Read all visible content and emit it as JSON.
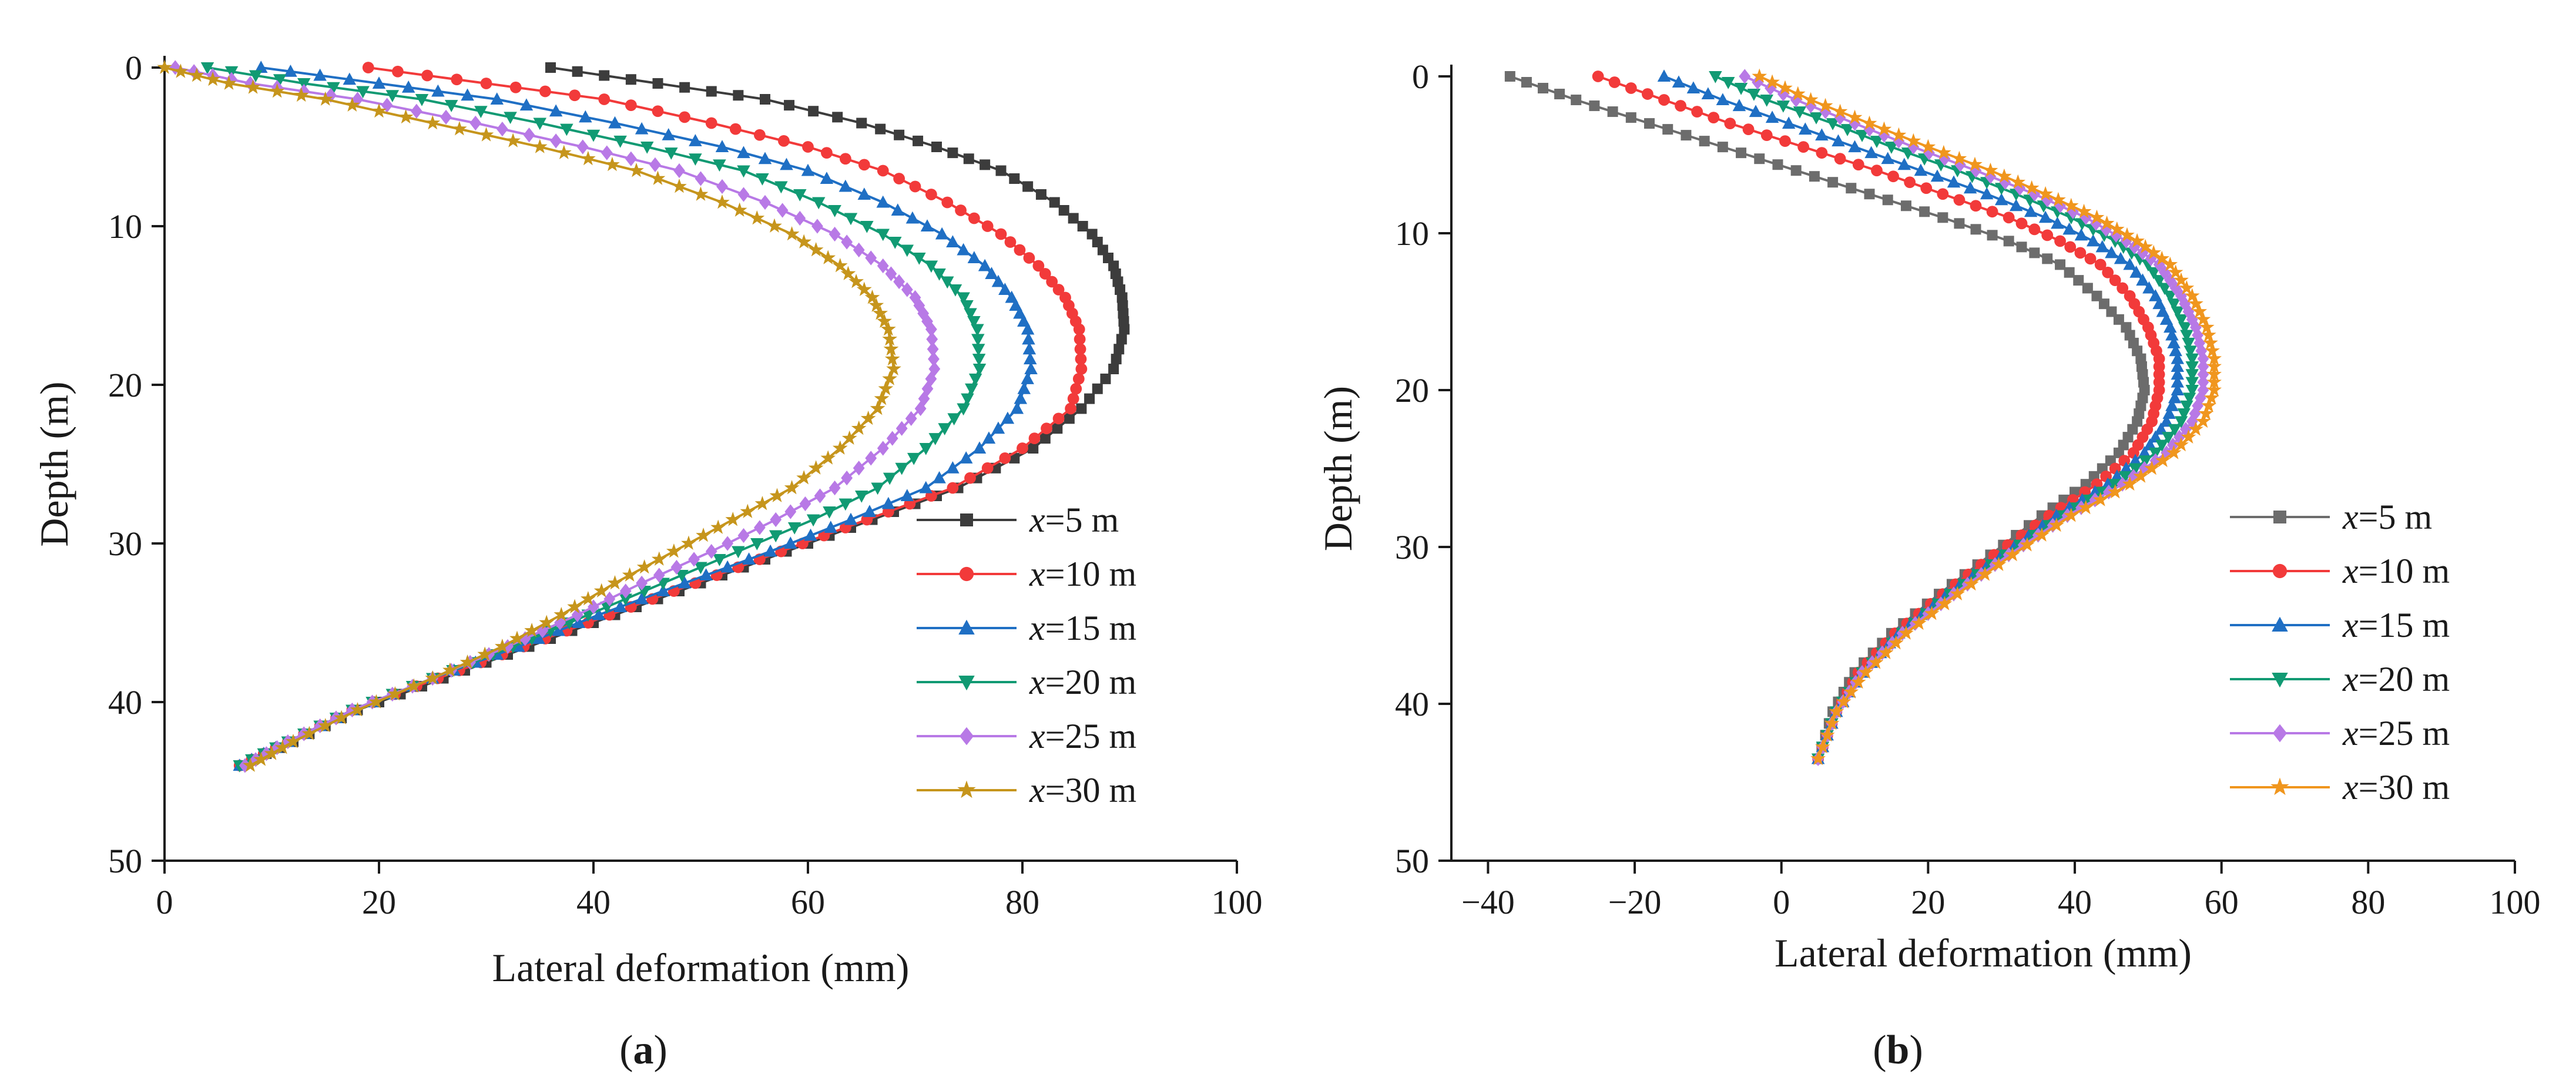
{
  "figure": {
    "panels": [
      {
        "id": "a",
        "caption_open": "(",
        "caption_letter": "a",
        "caption_close": ")"
      },
      {
        "id": "b",
        "caption_open": "(",
        "caption_letter": "b",
        "caption_close": ")"
      }
    ]
  },
  "chart_data": [
    {
      "type": "line",
      "panel": "a",
      "title": "",
      "xlabel": "Lateral deformation (mm)",
      "ylabel": "Depth (m)",
      "xlim": [
        0,
        100
      ],
      "ylim": [
        0,
        50
      ],
      "y_inverted": true,
      "xticks": [
        0,
        20,
        40,
        60,
        80,
        100
      ],
      "yticks": [
        0,
        10,
        20,
        30,
        40,
        50
      ],
      "legend_location": "lower-right",
      "series": [
        {
          "name_prefix": "x",
          "name_suffix": "=5 m",
          "color": "#3c3c3c",
          "marker": "square",
          "x": [
            36,
            46,
            56,
            65,
            72,
            78,
            83,
            86.5,
            88.5,
            89.3,
            89.5,
            88.5,
            85.5,
            81,
            74,
            66,
            58,
            50,
            42,
            34,
            26,
            18,
            12,
            7
          ],
          "y": [
            0,
            1,
            2,
            3.5,
            5,
            6.5,
            8.5,
            10.5,
            12.5,
            14.5,
            16.5,
            19,
            21.5,
            24,
            26.5,
            28.5,
            30.5,
            32.5,
            34.5,
            36.5,
            38.5,
            40.5,
            42.5,
            44
          ]
        },
        {
          "name_prefix": "x",
          "name_suffix": "=10 m",
          "color": "#f23a3a",
          "marker": "circle",
          "x": [
            19,
            30,
            41,
            51,
            60,
            67,
            73,
            78,
            81.5,
            84,
            85.3,
            85.5,
            84.5,
            80,
            73.5,
            65.5,
            57.5,
            49.5,
            41.5,
            33.5,
            25.5,
            17.5,
            11.5,
            7
          ],
          "y": [
            0,
            1,
            2,
            3.5,
            5,
            6.5,
            8.5,
            10.5,
            12.5,
            14.5,
            16.5,
            19,
            21.5,
            24,
            26.5,
            28.5,
            30.5,
            32.5,
            34.5,
            36.5,
            38.5,
            40.5,
            42.5,
            44
          ]
        },
        {
          "name_prefix": "x",
          "name_suffix": "=15 m",
          "color": "#1f6fc4",
          "marker": "triangle-up",
          "x": [
            9,
            20,
            31,
            42,
            52,
            60,
            67,
            72.5,
            76.5,
            79,
            80.5,
            80.8,
            79.5,
            76,
            71,
            64,
            56.5,
            48.5,
            40.5,
            33,
            25,
            17.5,
            11.5,
            7
          ],
          "y": [
            0,
            1,
            2,
            3.5,
            5,
            6.5,
            8.5,
            10.5,
            12.5,
            14.5,
            16.5,
            19,
            21.5,
            24,
            26.5,
            28.5,
            30.5,
            32.5,
            34.5,
            36.5,
            38.5,
            40.5,
            42.5,
            44
          ]
        },
        {
          "name_prefix": "x",
          "name_suffix": "=20 m",
          "color": "#119a73",
          "marker": "triangle-down",
          "x": [
            4,
            13,
            24,
            35,
            45,
            54,
            61,
            67,
            71.5,
            74.5,
            75.8,
            76,
            74.5,
            71,
            66.5,
            60.5,
            53.5,
            46.5,
            39.5,
            32.5,
            25,
            17.5,
            11.5,
            7
          ],
          "y": [
            0,
            1,
            2,
            3.5,
            5,
            6.5,
            8.5,
            10.5,
            12.5,
            14.5,
            16.5,
            19,
            21.5,
            24,
            26.5,
            28.5,
            30.5,
            32.5,
            34.5,
            36.5,
            38.5,
            40.5,
            42.5,
            44
          ]
        },
        {
          "name_prefix": "x",
          "name_suffix": "=25 m",
          "color": "#b879e6",
          "marker": "diamond",
          "x": [
            1,
            8,
            18,
            29,
            39,
            48,
            56,
            62.5,
            67,
            70,
            71.5,
            71.8,
            70.5,
            67,
            62.5,
            57,
            51,
            44.5,
            38.5,
            32,
            25,
            17.5,
            11.5,
            7.5
          ],
          "y": [
            0,
            1,
            2,
            3.5,
            5,
            6.5,
            8.5,
            10.5,
            12.5,
            14.5,
            16.5,
            19,
            21.5,
            24,
            26.5,
            28.5,
            30.5,
            32.5,
            34.5,
            36.5,
            38.5,
            40.5,
            42.5,
            44
          ]
        },
        {
          "name_prefix": "x",
          "name_suffix": "=30 m",
          "color": "#c6951c",
          "marker": "star",
          "x": [
            0,
            6,
            15,
            25,
            35,
            44,
            52,
            58.5,
            63,
            66,
            67.5,
            68,
            66.5,
            63,
            58.5,
            53,
            47.5,
            42,
            37,
            31.5,
            25,
            18,
            12,
            8
          ],
          "y": [
            0,
            1,
            2,
            3.5,
            5,
            6.5,
            8.5,
            10.5,
            12.5,
            14.5,
            16.5,
            19,
            21.5,
            24,
            26.5,
            28.5,
            30.5,
            32.5,
            34.5,
            36.5,
            38.5,
            40.5,
            42.5,
            44
          ]
        }
      ]
    },
    {
      "type": "line",
      "panel": "b",
      "title": "",
      "xlabel": "Lateral deformation (mm)",
      "ylabel": "Depth (m)",
      "xlim": [
        -45,
        100
      ],
      "ylim": [
        0,
        50
      ],
      "y_inverted": true,
      "xticks": [
        -40,
        -20,
        0,
        20,
        40,
        60,
        80,
        100
      ],
      "xtick_labels": [
        "−40",
        "−20",
        "0",
        "20",
        "40",
        "60",
        "80",
        "100"
      ],
      "yticks": [
        0,
        10,
        20,
        30,
        40,
        50
      ],
      "legend_location": "lower-right",
      "series": [
        {
          "name_prefix": "x",
          "name_suffix": "=5 m",
          "color": "#6c6c6c",
          "marker": "square",
          "x": [
            -37,
            -28,
            -18,
            -8,
            2,
            12,
            22,
            31,
            38,
            43,
            47,
            49,
            49.5,
            48.5,
            46,
            41.5,
            35.5,
            28.5,
            21.5,
            15,
            10,
            7,
            5
          ],
          "y": [
            0,
            1.5,
            3,
            4.5,
            6,
            7.5,
            9,
            10.5,
            12,
            14,
            16,
            18,
            20,
            22,
            24,
            26,
            28,
            30.5,
            33,
            35.5,
            38,
            40.5,
            43.5
          ]
        },
        {
          "name_prefix": "x",
          "name_suffix": "=10 m",
          "color": "#f23a3a",
          "marker": "circle",
          "x": [
            -25,
            -16,
            -7,
            3,
            13,
            22,
            31,
            38,
            43.5,
            47.5,
            50,
            51.5,
            51.5,
            50.5,
            48,
            43,
            36.5,
            29,
            22,
            15.5,
            10.5,
            7.5,
            5
          ],
          "y": [
            0,
            1.5,
            3,
            4.5,
            6,
            7.5,
            9,
            10.5,
            12,
            14,
            16,
            18,
            20,
            22,
            24,
            26,
            28,
            30.5,
            33,
            35.5,
            38,
            40.5,
            43.5
          ]
        },
        {
          "name_prefix": "x",
          "name_suffix": "=15 m",
          "color": "#1f6fc4",
          "marker": "triangle-up",
          "x": [
            -16,
            -8,
            1,
            10,
            19,
            28,
            36,
            42.5,
            47.5,
            51,
            53,
            54,
            54,
            52.5,
            49.5,
            44.5,
            37.5,
            30,
            22.5,
            16,
            11,
            7.5,
            5
          ],
          "y": [
            0,
            1.5,
            3,
            4.5,
            6,
            7.5,
            9,
            10.5,
            12,
            14,
            16,
            18,
            20,
            22,
            24,
            26,
            28,
            30.5,
            33,
            35.5,
            38,
            40.5,
            43.5
          ]
        },
        {
          "name_prefix": "x",
          "name_suffix": "=20 m",
          "color": "#119a73",
          "marker": "triangle-down",
          "x": [
            -9,
            -2,
            7,
            15,
            24,
            32,
            39.5,
            45.5,
            50,
            53,
            55,
            56,
            56,
            54.5,
            51,
            45.5,
            38.5,
            30.5,
            23,
            16.5,
            11,
            7.5,
            5
          ],
          "y": [
            0,
            1.5,
            3,
            4.5,
            6,
            7.5,
            9,
            10.5,
            12,
            14,
            16,
            18,
            20,
            22,
            24,
            26,
            28,
            30.5,
            33,
            35.5,
            38,
            40.5,
            43.5
          ]
        },
        {
          "name_prefix": "x",
          "name_suffix": "=25 m",
          "color": "#b879e6",
          "marker": "diamond",
          "x": [
            -5,
            2,
            10,
            18,
            26.5,
            34.5,
            41.5,
            47,
            51.5,
            54.5,
            56.5,
            57.5,
            57.5,
            56,
            52.5,
            46.5,
            39,
            31,
            23.5,
            16.5,
            11,
            7.5,
            5
          ],
          "y": [
            0,
            1.5,
            3,
            4.5,
            6,
            7.5,
            9,
            10.5,
            12,
            14,
            16,
            18,
            20,
            22,
            24,
            26,
            28,
            30.5,
            33,
            35.5,
            38,
            40.5,
            43.5
          ]
        },
        {
          "name_prefix": "x",
          "name_suffix": "=30 m",
          "color": "#f0961e",
          "marker": "star",
          "x": [
            -3,
            4,
            12,
            20,
            28.5,
            36,
            43,
            48.5,
            53,
            56,
            58,
            59,
            59,
            57.5,
            53.5,
            47.5,
            39.5,
            31.5,
            24,
            17,
            11.5,
            7.5,
            5
          ],
          "y": [
            0,
            1.5,
            3,
            4.5,
            6,
            7.5,
            9,
            10.5,
            12,
            14,
            16,
            18,
            20,
            22,
            24,
            26,
            28,
            30.5,
            33,
            35.5,
            38,
            40.5,
            43.5
          ]
        }
      ]
    }
  ]
}
